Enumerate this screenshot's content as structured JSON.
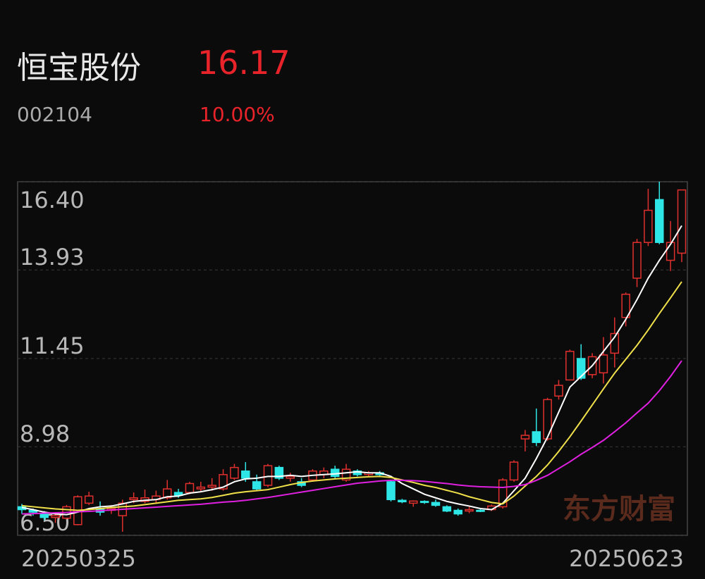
{
  "header": {
    "name": "恒宝股份",
    "price": "16.17",
    "code": "002104",
    "change": "10.00%"
  },
  "watermark": "东方财富",
  "chart_data": {
    "type": "candlestick",
    "categories": [
      "20250325",
      null,
      null,
      null,
      null,
      null,
      null,
      null,
      null,
      null,
      null,
      null,
      null,
      null,
      null,
      null,
      null,
      null,
      null,
      null,
      null,
      null,
      null,
      null,
      null,
      null,
      null,
      null,
      null,
      null,
      null,
      null,
      null,
      null,
      null,
      null,
      null,
      null,
      null,
      null,
      null,
      null,
      null,
      null,
      null,
      null,
      null,
      null,
      null,
      null,
      null,
      null,
      null,
      null,
      null,
      null,
      null,
      null,
      null,
      "20250623"
    ],
    "open": [
      7.3,
      7.2,
      7.1,
      7.0,
      6.98,
      6.8,
      7.4,
      7.25,
      7.2,
      7.05,
      7.5,
      7.45,
      7.5,
      7.55,
      7.7,
      7.7,
      7.8,
      7.85,
      7.8,
      8.1,
      8.3,
      8.0,
      7.9,
      8.4,
      8.1,
      8.0,
      8.05,
      8.2,
      8.35,
      8.05,
      8.3,
      8.2,
      8.25,
      8.0,
      7.48,
      7.4,
      7.45,
      7.42,
      7.3,
      7.2,
      7.18,
      7.2,
      7.22,
      7.3,
      8.05,
      9.2,
      9.4,
      9.2,
      10.4,
      10.85,
      11.45,
      11.0,
      11.05,
      11.6,
      12.6,
      13.7,
      14.7,
      15.9,
      14.2,
      14.4
    ],
    "high": [
      7.38,
      7.25,
      7.18,
      7.1,
      7.35,
      7.62,
      7.72,
      7.45,
      7.35,
      7.5,
      7.7,
      7.78,
      7.75,
      8.05,
      7.8,
      8.0,
      8.0,
      8.1,
      8.35,
      8.5,
      8.55,
      8.2,
      8.5,
      8.45,
      8.25,
      8.1,
      8.35,
      8.4,
      8.45,
      8.5,
      8.35,
      8.3,
      8.3,
      8.05,
      7.52,
      7.48,
      7.48,
      7.5,
      7.34,
      7.25,
      7.3,
      7.26,
      7.36,
      8.1,
      8.6,
      9.45,
      10.05,
      10.35,
      10.85,
      11.7,
      11.85,
      11.6,
      12.05,
      12.6,
      13.3,
      14.8,
      16.2,
      16.4,
      15.3,
      16.17
    ],
    "low": [
      7.1,
      7.05,
      6.92,
      6.85,
      6.95,
      6.78,
      7.35,
      7.05,
      7.1,
      6.6,
      7.4,
      7.4,
      7.4,
      7.5,
      7.55,
      7.65,
      7.7,
      7.75,
      7.75,
      8.05,
      8.0,
      7.75,
      7.85,
      8.05,
      8.0,
      7.85,
      8.0,
      8.1,
      8.1,
      8.0,
      8.15,
      8.15,
      8.15,
      7.45,
      7.4,
      7.3,
      7.38,
      7.3,
      7.15,
      7.05,
      7.12,
      7.15,
      7.18,
      7.25,
      8.0,
      8.85,
      9.0,
      9.15,
      10.3,
      10.85,
      10.85,
      10.9,
      10.75,
      11.2,
      12.35,
      13.45,
      14.6,
      14.65,
      13.9,
      14.15
    ],
    "close": [
      7.22,
      7.15,
      7.0,
      7.05,
      7.3,
      7.58,
      7.6,
      7.15,
      7.25,
      7.4,
      7.55,
      7.55,
      7.6,
      7.8,
      7.62,
      7.95,
      7.85,
      7.9,
      8.2,
      8.4,
      8.1,
      7.8,
      8.45,
      8.1,
      8.15,
      7.9,
      8.3,
      8.3,
      8.15,
      8.35,
      8.2,
      8.25,
      8.2,
      7.5,
      7.44,
      7.46,
      7.42,
      7.34,
      7.18,
      7.1,
      7.22,
      7.18,
      7.32,
      8.05,
      8.55,
      9.3,
      9.1,
      10.3,
      10.7,
      11.65,
      10.9,
      11.5,
      11.55,
      12.15,
      13.25,
      14.7,
      15.6,
      14.7,
      14.7,
      16.17
    ],
    "up_color": "#e0302e",
    "down_color": "#2ee6e6",
    "series": [
      {
        "color": "#ffffff",
        "values": [
          7.28,
          7.22,
          7.15,
          7.1,
          7.08,
          7.15,
          7.25,
          7.3,
          7.32,
          7.38,
          7.45,
          7.48,
          7.5,
          7.58,
          7.6,
          7.68,
          7.72,
          7.78,
          7.85,
          8.0,
          8.08,
          8.1,
          8.15,
          8.15,
          8.18,
          8.15,
          8.18,
          8.2,
          8.22,
          8.25,
          8.28,
          8.25,
          8.25,
          8.15,
          7.95,
          7.8,
          7.65,
          7.55,
          7.45,
          7.38,
          7.32,
          7.25,
          7.22,
          7.4,
          7.75,
          8.1,
          8.65,
          9.25,
          9.95,
          10.65,
          10.95,
          11.25,
          11.65,
          12.05,
          12.55,
          13.1,
          13.7,
          14.2,
          14.65,
          15.17
        ]
      },
      {
        "color": "#f0e04a",
        "values": [
          7.33,
          7.3,
          7.27,
          7.24,
          7.22,
          7.2,
          7.22,
          7.25,
          7.28,
          7.3,
          7.32,
          7.36,
          7.4,
          7.44,
          7.48,
          7.5,
          7.52,
          7.56,
          7.62,
          7.68,
          7.72,
          7.75,
          7.78,
          7.85,
          7.92,
          7.98,
          8.02,
          8.05,
          8.08,
          8.1,
          8.12,
          8.14,
          8.15,
          8.12,
          8.05,
          7.98,
          7.9,
          7.84,
          7.76,
          7.68,
          7.58,
          7.5,
          7.42,
          7.38,
          7.6,
          7.88,
          8.15,
          8.47,
          8.85,
          9.26,
          9.7,
          10.15,
          10.6,
          11.04,
          11.43,
          11.82,
          12.25,
          12.71,
          13.15,
          13.6
        ]
      },
      {
        "color": "#e020e0",
        "values": [
          7.1,
          7.11,
          7.12,
          7.13,
          7.14,
          7.16,
          7.17,
          7.19,
          7.21,
          7.23,
          7.25,
          7.27,
          7.29,
          7.31,
          7.33,
          7.35,
          7.37,
          7.4,
          7.43,
          7.45,
          7.48,
          7.52,
          7.56,
          7.61,
          7.66,
          7.71,
          7.76,
          7.81,
          7.86,
          7.91,
          7.96,
          7.99,
          8.02,
          8.04,
          8.04,
          8.03,
          8.01,
          7.98,
          7.95,
          7.91,
          7.88,
          7.86,
          7.85,
          7.84,
          7.87,
          7.92,
          8.04,
          8.18,
          8.37,
          8.56,
          8.77,
          8.96,
          9.16,
          9.4,
          9.65,
          9.93,
          10.2,
          10.55,
          10.95,
          11.39
        ]
      }
    ],
    "ylim": [
      6.5,
      16.4
    ],
    "yticks": [
      {
        "value": 16.4,
        "label": "16.40"
      },
      13.93,
      11.45,
      8.98,
      {
        "value": 6.5,
        "label": "6.50"
      }
    ],
    "grid": true
  }
}
